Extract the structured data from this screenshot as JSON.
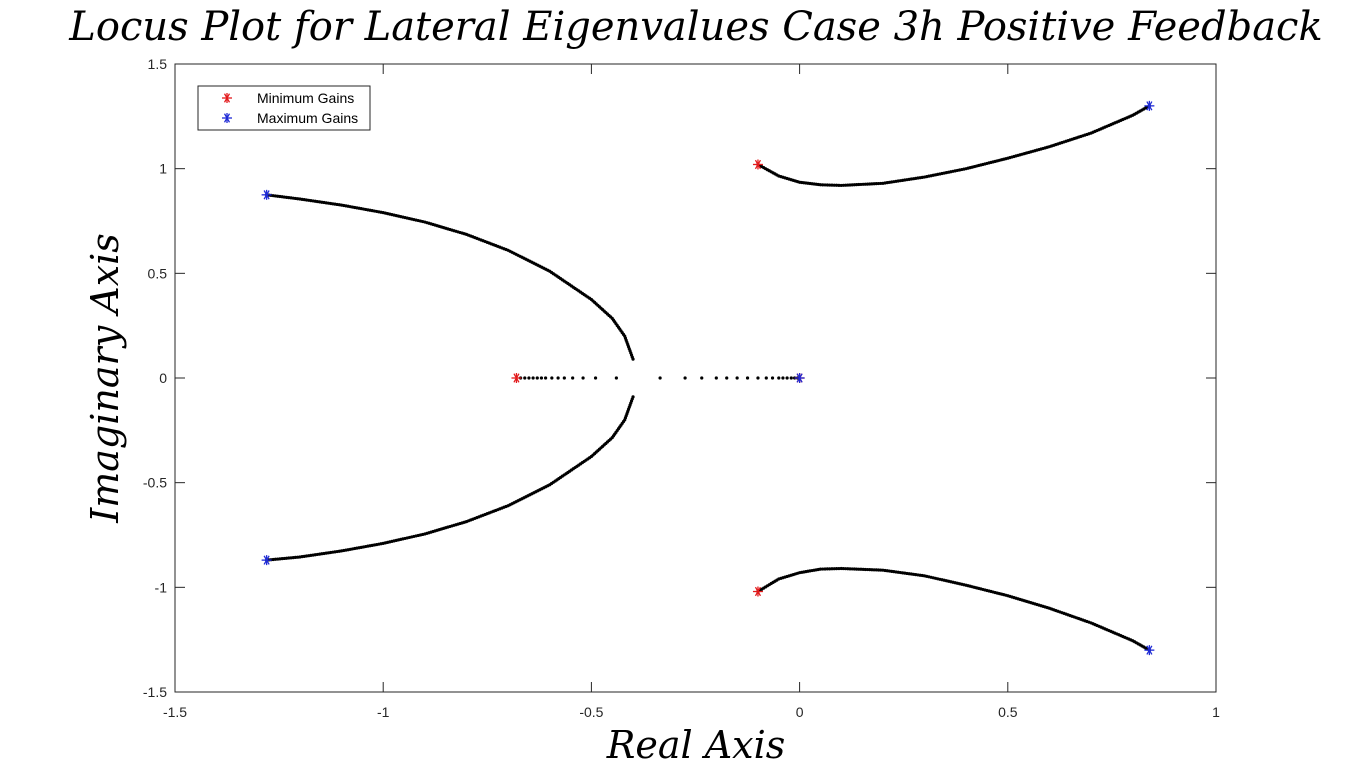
{
  "chart_data": {
    "type": "scatter",
    "title": "Locus Plot for Lateral Eigenvalues Case 3h Positive Feedback",
    "xlabel": "Real Axis",
    "ylabel": "Imaginary Axis",
    "xlim": [
      -1.5,
      1
    ],
    "ylim": [
      -1.5,
      1.5
    ],
    "xticks": [
      "-1.5",
      "-1",
      "-0.5",
      "0",
      "0.5",
      "1"
    ],
    "yticks": [
      "1.5",
      "1",
      "0.5",
      "0",
      "-0.5",
      "-1",
      "-1.5"
    ],
    "grid": false,
    "legend_position": "top-left",
    "legend": [
      {
        "label": "Minimum Gains",
        "color": "#e31a1c",
        "marker": "asterisk"
      },
      {
        "label": "Maximum Gains",
        "color": "#1f2bd6",
        "marker": "asterisk"
      }
    ],
    "series": [
      {
        "name": "Minimum Gains",
        "color": "#e31a1c",
        "marker": "asterisk",
        "points": [
          [
            -0.68,
            0.0
          ],
          [
            -0.1,
            1.02
          ],
          [
            -0.1,
            -1.02
          ],
          [
            0.0,
            0.0
          ]
        ]
      },
      {
        "name": "Maximum Gains",
        "color": "#1f2bd6",
        "marker": "asterisk",
        "points": [
          [
            -1.28,
            0.875
          ],
          [
            -1.28,
            -0.87
          ],
          [
            0.84,
            1.3
          ],
          [
            0.84,
            -1.3
          ],
          [
            0.0,
            0.0
          ]
        ]
      }
    ],
    "locus_branches": [
      {
        "color": "#000000",
        "dense": true,
        "points": [
          [
            -1.28,
            0.875
          ],
          [
            -1.2,
            0.855
          ],
          [
            -1.1,
            0.826
          ],
          [
            -1.0,
            0.79
          ],
          [
            -0.9,
            0.745
          ],
          [
            -0.8,
            0.686
          ],
          [
            -0.7,
            0.61
          ],
          [
            -0.6,
            0.51
          ],
          [
            -0.5,
            0.375
          ],
          [
            -0.45,
            0.285
          ],
          [
            -0.42,
            0.2
          ],
          [
            -0.4,
            0.09
          ]
        ]
      },
      {
        "color": "#000000",
        "dense": true,
        "points": [
          [
            -0.4,
            -0.09
          ],
          [
            -0.42,
            -0.2
          ],
          [
            -0.45,
            -0.285
          ],
          [
            -0.5,
            -0.375
          ],
          [
            -0.6,
            -0.51
          ],
          [
            -0.7,
            -0.61
          ],
          [
            -0.8,
            -0.686
          ],
          [
            -0.9,
            -0.745
          ],
          [
            -1.0,
            -0.79
          ],
          [
            -1.1,
            -0.826
          ],
          [
            -1.2,
            -0.855
          ],
          [
            -1.28,
            -0.87
          ]
        ]
      },
      {
        "color": "#000000",
        "dense": true,
        "points": [
          [
            -0.1,
            1.02
          ],
          [
            -0.05,
            0.965
          ],
          [
            0.0,
            0.935
          ],
          [
            0.05,
            0.923
          ],
          [
            0.1,
            0.92
          ],
          [
            0.2,
            0.93
          ],
          [
            0.3,
            0.96
          ],
          [
            0.4,
            1.0
          ],
          [
            0.5,
            1.05
          ],
          [
            0.6,
            1.105
          ],
          [
            0.7,
            1.17
          ],
          [
            0.8,
            1.255
          ],
          [
            0.84,
            1.3
          ]
        ]
      },
      {
        "color": "#000000",
        "dense": true,
        "points": [
          [
            -0.1,
            -1.02
          ],
          [
            -0.05,
            -0.96
          ],
          [
            0.0,
            -0.93
          ],
          [
            0.05,
            -0.913
          ],
          [
            0.1,
            -0.91
          ],
          [
            0.2,
            -0.918
          ],
          [
            0.3,
            -0.945
          ],
          [
            0.4,
            -0.99
          ],
          [
            0.5,
            -1.04
          ],
          [
            0.6,
            -1.1
          ],
          [
            0.7,
            -1.17
          ],
          [
            0.8,
            -1.255
          ],
          [
            0.84,
            -1.3
          ]
        ]
      },
      {
        "color": "#000000",
        "dense": false,
        "points": [
          [
            -0.67,
            0
          ],
          [
            -0.66,
            0
          ],
          [
            -0.65,
            0
          ],
          [
            -0.64,
            0
          ],
          [
            -0.63,
            0
          ],
          [
            -0.62,
            0
          ],
          [
            -0.61,
            0
          ],
          [
            -0.595,
            0
          ],
          [
            -0.58,
            0
          ],
          [
            -0.565,
            0
          ],
          [
            -0.545,
            0
          ],
          [
            -0.52,
            0
          ],
          [
            -0.49,
            0
          ],
          [
            -0.44,
            0
          ]
        ]
      },
      {
        "color": "#000000",
        "dense": false,
        "points": [
          [
            -0.335,
            0
          ],
          [
            -0.275,
            0
          ],
          [
            -0.235,
            0
          ],
          [
            -0.2,
            0
          ],
          [
            -0.175,
            0
          ],
          [
            -0.15,
            0
          ],
          [
            -0.125,
            0
          ],
          [
            -0.1,
            0
          ],
          [
            -0.08,
            0
          ],
          [
            -0.065,
            0
          ],
          [
            -0.05,
            0
          ],
          [
            -0.04,
            0
          ],
          [
            -0.03,
            0
          ],
          [
            -0.02,
            0
          ],
          [
            -0.012,
            0
          ],
          [
            -0.005,
            0
          ]
        ]
      }
    ]
  }
}
